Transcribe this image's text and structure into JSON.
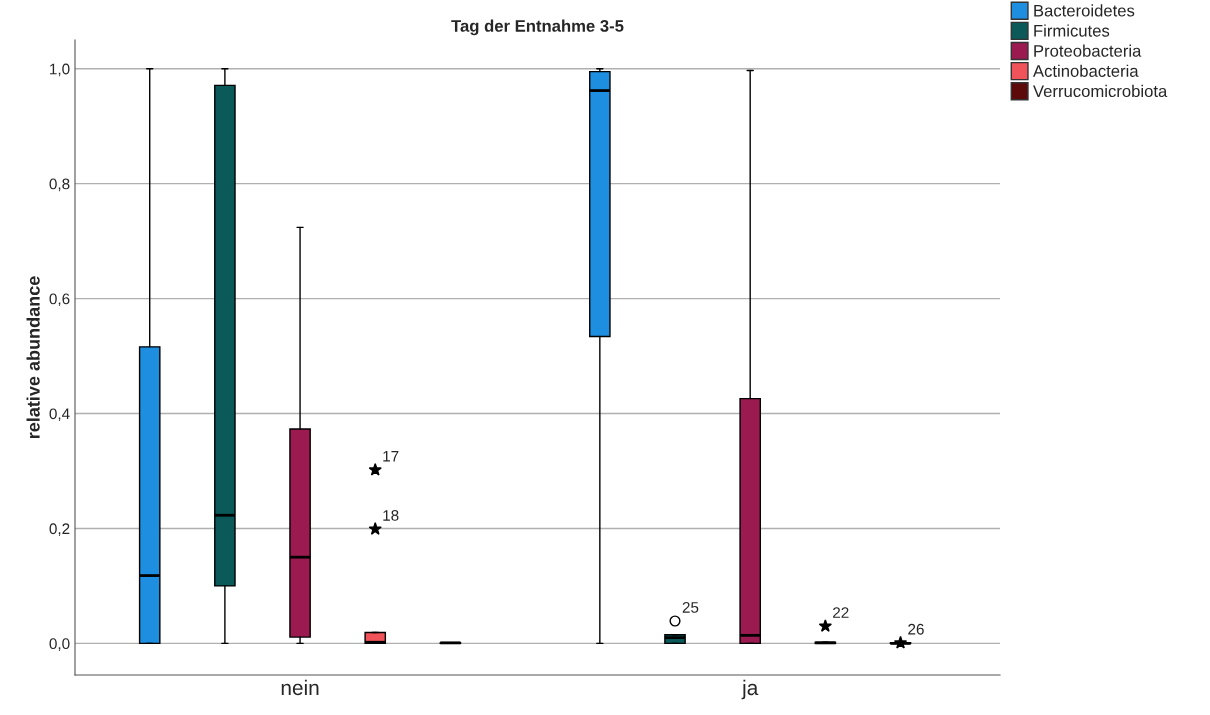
{
  "chart_data": {
    "type": "box",
    "title": "Tag der Entnahme 3-5",
    "ylabel": "relative abundance",
    "categories": [
      "nein",
      "ja"
    ],
    "series": [
      {
        "name": "Bacteroidetes",
        "color": "#1e8fe0",
        "boxes": [
          {
            "low": 0,
            "q1": 0,
            "median": 0.118,
            "q3": 0.516,
            "high": 1.0
          },
          {
            "low": 0,
            "q1": 0.534,
            "median": 0.962,
            "q3": 0.995,
            "high": 1.0
          }
        ]
      },
      {
        "name": "Firmicutes",
        "color": "#0b5959",
        "marker": "circle",
        "boxes": [
          {
            "low": 0,
            "q1": 0.1,
            "median": 0.223,
            "q3": 0.971,
            "high": 1.0
          },
          {
            "low": 0,
            "q1": 0,
            "median": 0.01,
            "q3": 0.015,
            "high": 0.015,
            "outliers": [
              0.039
            ]
          }
        ]
      },
      {
        "name": "Proteobacteria",
        "color": "#9b1b50",
        "boxes": [
          {
            "low": 0,
            "q1": 0.011,
            "median": 0.15,
            "q3": 0.373,
            "high": 0.724
          },
          {
            "low": 0,
            "q1": 0,
            "median": 0.014,
            "q3": 0.426,
            "high": 0.997
          }
        ]
      },
      {
        "name": "Actinobacteria",
        "color": "#f0545a",
        "boxes": [
          {
            "low": 0,
            "q1": 0,
            "median": 0.002,
            "q3": 0.019,
            "high": 0.019,
            "outliers": [
              0.302,
              0.199
            ]
          },
          {
            "low": 0,
            "q1": 0,
            "median": 0.001,
            "q3": 0.002,
            "high": 0.002,
            "outliers": [
              0.03
            ]
          }
        ]
      },
      {
        "name": "Verrucomicrobiota",
        "color": "#5c0a0a",
        "boxes": [
          {
            "low": 0,
            "q1": 0,
            "median": 0.001,
            "q3": 0.001,
            "high": 0.001
          },
          {
            "low": 0,
            "q1": 0,
            "median": 0.0,
            "q3": 0.001,
            "high": 0.001,
            "outliers": [
              0.001
            ]
          }
        ]
      }
    ],
    "annotations": [
      "25",
      "17",
      "18",
      "22",
      "26"
    ],
    "ylim": [
      -0.055,
      1.05
    ],
    "yticks": [
      {
        "value": 0,
        "label": "0,0"
      },
      {
        "value": 0.2,
        "label": "0,2"
      },
      {
        "value": 0.4,
        "label": "0,4"
      },
      {
        "value": 0.6,
        "label": "0,6"
      },
      {
        "value": 0.8,
        "label": "0,8"
      },
      {
        "value": 1.0,
        "label": "1,0"
      }
    ],
    "grid": "y",
    "legend": "top right",
    "marker": "star"
  }
}
